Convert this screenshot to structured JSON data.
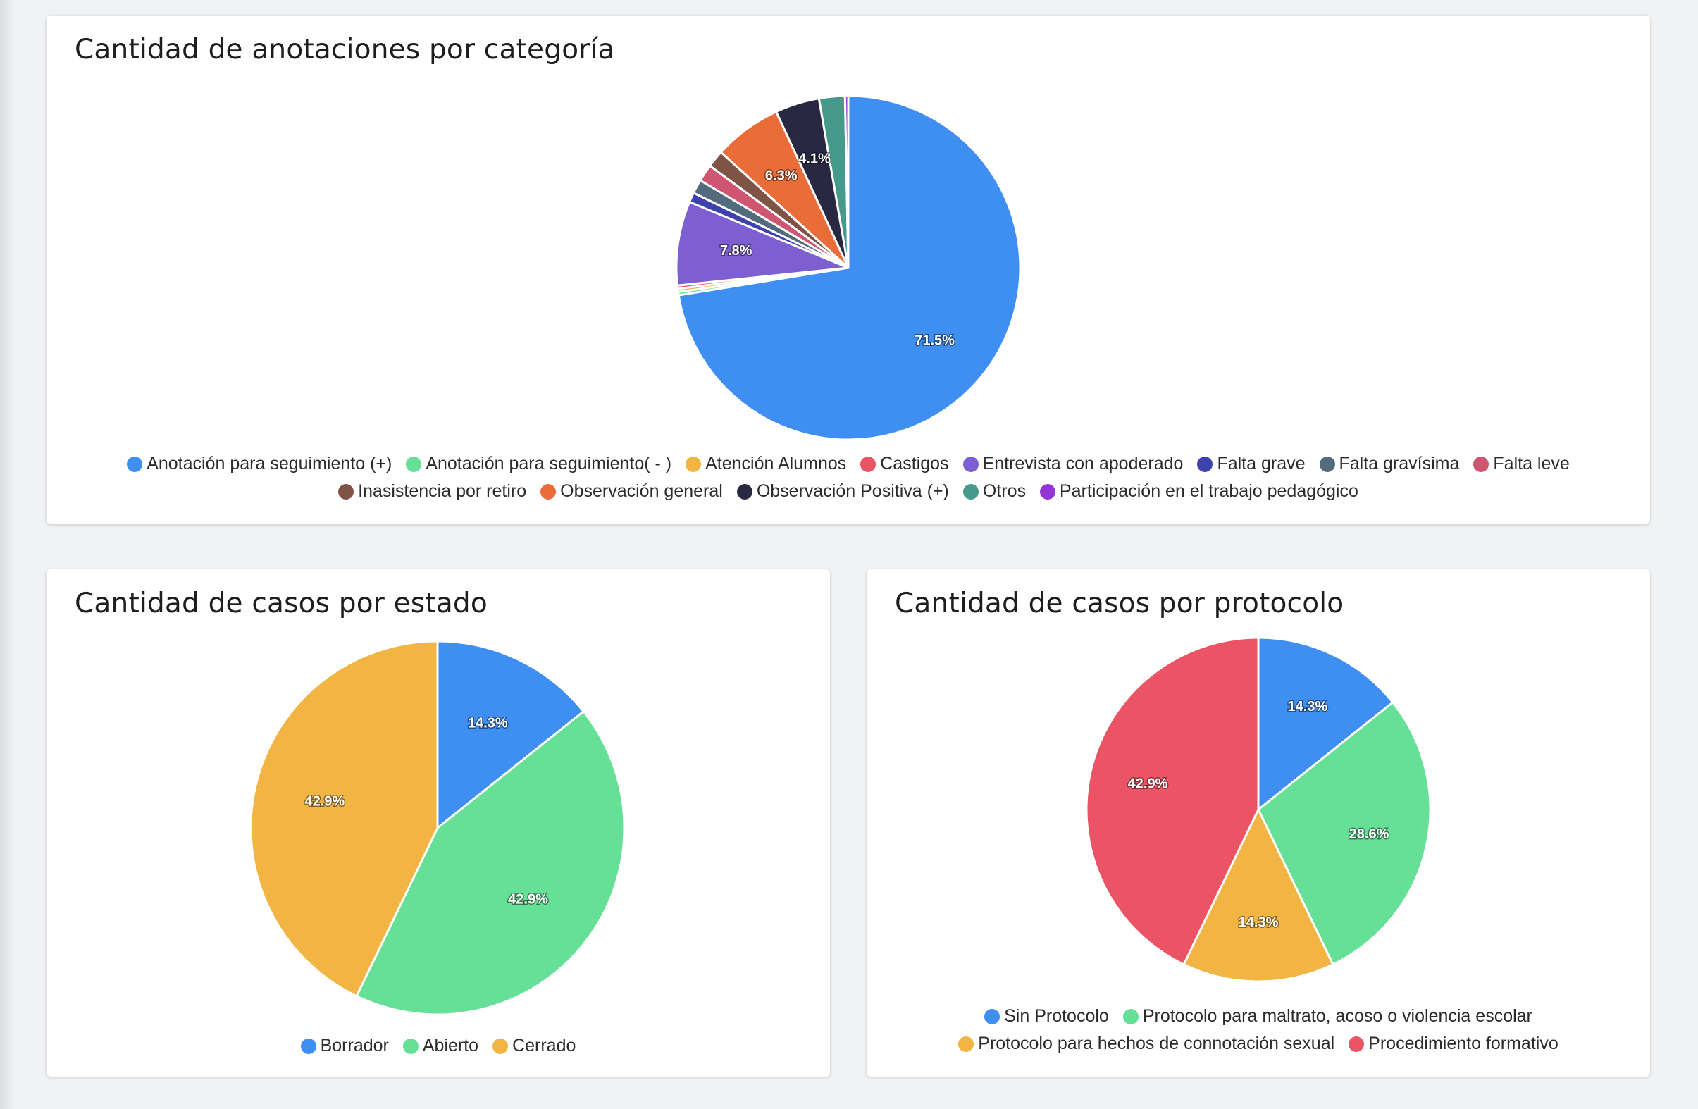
{
  "chart_data": [
    {
      "type": "pie",
      "title": "Cantidad de anotaciones por categoría",
      "categories": [
        "Anotación para seguimiento (+)",
        "Anotación para seguimiento( - )",
        "Atención Alumnos",
        "Castigos",
        "Entrevista con apoderado",
        "Falta grave",
        "Falta gravísima",
        "Falta leve",
        "Inasistencia por retiro",
        "Observación general",
        "Observación Positiva (+)",
        "Otros",
        "Participación en el trabajo pedagógico"
      ],
      "values": [
        71.5,
        0.3,
        0.3,
        0.3,
        7.8,
        0.9,
        1.3,
        1.6,
        1.6,
        6.3,
        4.1,
        2.4,
        0.3
      ],
      "colors": [
        "#3f8ef2",
        "#66df97",
        "#f2b443",
        "#ea5464",
        "#7d5fd2",
        "#3d42ac",
        "#526b7d",
        "#cf5670",
        "#7f5346",
        "#ea6d39",
        "#292843",
        "#459a8b",
        "#9235d4"
      ],
      "data_labels": [
        "71.5%",
        "",
        "",
        "",
        "7.8%",
        "",
        "",
        "",
        "",
        "6.3%",
        "4.1%",
        "",
        ""
      ],
      "legend_position": "bottom"
    },
    {
      "type": "pie",
      "title": "Cantidad de casos por estado",
      "categories": [
        "Borrador",
        "Abierto",
        "Cerrado"
      ],
      "values": [
        14.3,
        42.9,
        42.9
      ],
      "colors": [
        "#3f8ef2",
        "#66df97",
        "#f2b443"
      ],
      "data_labels": [
        "14.3%",
        "42.9%",
        "42.9%"
      ],
      "legend_position": "bottom"
    },
    {
      "type": "pie",
      "title": "Cantidad de casos por protocolo",
      "categories": [
        "Sin Protocolo",
        "Protocolo para maltrato, acoso o violencia escolar",
        "Protocolo para hechos de connotación sexual",
        "Procedimiento formativo"
      ],
      "values": [
        14.3,
        28.6,
        14.3,
        42.9
      ],
      "colors": [
        "#3f8ef2",
        "#66df97",
        "#f2b443",
        "#ea5464"
      ],
      "data_labels": [
        "14.3%",
        "28.6%",
        "14.3%",
        "42.9%"
      ],
      "legend_position": "bottom"
    }
  ]
}
